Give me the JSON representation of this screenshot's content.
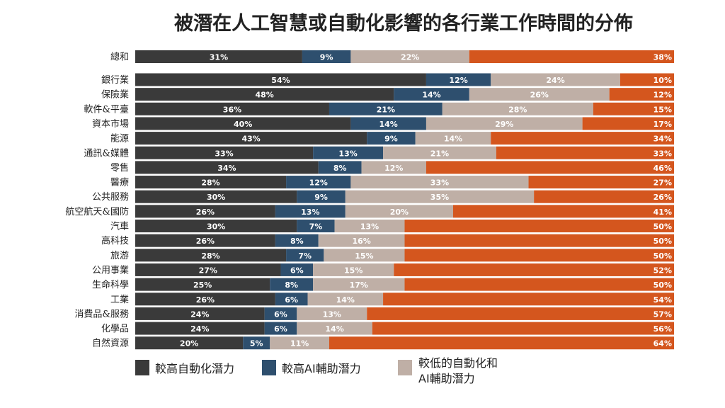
{
  "chart_data": {
    "type": "bar",
    "orientation": "horizontal",
    "stacked": true,
    "normalized_percent": true,
    "title": "被潛在人工智慧或自動化影響的各行業工作時間的分佈",
    "categories": [
      "總和",
      "銀行業",
      "保險業",
      "軟件&平臺",
      "資本市場",
      "能源",
      "通訊&媒體",
      "零售",
      "醫療",
      "公共服務",
      "航空航天&國防",
      "汽車",
      "高科技",
      "旅游",
      "公用事業",
      "生命科學",
      "工業",
      "消費品&服務",
      "化學品",
      "自然資源"
    ],
    "series": [
      {
        "name": "較高自動化潛力",
        "color": "#3a3a3a",
        "values": [
          31,
          54,
          48,
          36,
          40,
          43,
          33,
          34,
          28,
          30,
          26,
          30,
          26,
          28,
          27,
          25,
          26,
          24,
          24,
          20
        ]
      },
      {
        "name": "較高AI輔助潛力",
        "color": "#2e4f6e",
        "values": [
          9,
          12,
          14,
          21,
          14,
          9,
          13,
          8,
          12,
          9,
          13,
          7,
          8,
          7,
          6,
          8,
          6,
          6,
          6,
          5
        ]
      },
      {
        "name": "較低的自動化和AI輔助潛力",
        "color": "#bfafa6",
        "values": [
          22,
          24,
          26,
          28,
          29,
          14,
          21,
          12,
          33,
          35,
          20,
          13,
          16,
          15,
          15,
          17,
          14,
          13,
          14,
          11
        ]
      },
      {
        "name": "",
        "color": "#d4561e",
        "values": [
          38,
          10,
          12,
          15,
          17,
          34,
          33,
          46,
          27,
          26,
          41,
          50,
          50,
          50,
          52,
          50,
          54,
          57,
          56,
          64
        ]
      }
    ],
    "legend": [
      {
        "label": "較高自動化潛力",
        "color": "#3a3a3a"
      },
      {
        "label": "較高AI輔助潛力",
        "color": "#2e4f6e"
      },
      {
        "label_line1": "較低的自動化和",
        "label_line2": "AI輔助潛力",
        "color": "#bfafa6"
      }
    ],
    "legend_position": "bottom-left",
    "value_suffix": "%",
    "xlabel": "",
    "ylabel": "",
    "grid": false
  }
}
